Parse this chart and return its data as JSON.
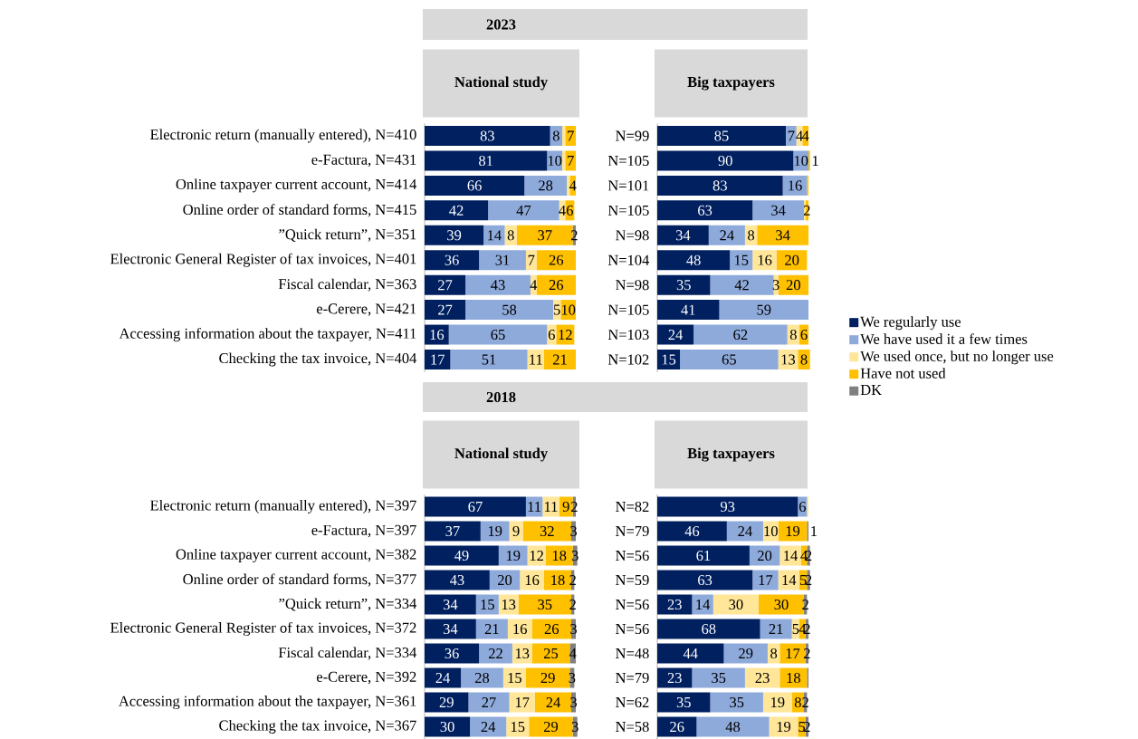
{
  "chart_data": [
    {
      "type": "bar",
      "orientation": "horizontal",
      "stacked": true,
      "title": "2023",
      "subtitle": "National study",
      "legend": "right",
      "tick_labels": "y",
      "xlim": [
        0,
        101
      ],
      "categories": [
        "Electronic return (manually entered), N=410",
        "e-Factura, N=431",
        "Online taxpayer current account, N=414",
        "Online order of standard forms, N=415",
        "”Quick return”, N=351",
        "Electronic General Register of tax invoices, N=401",
        "Fiscal calendar, N=363",
        "e-Cerere, N=421",
        "Accessing information about the taxpayer, N=411",
        "Checking the tax invoice, N=404"
      ],
      "series": [
        {
          "name": "We regularly use",
          "color": "#002060",
          "values": [
            83,
            81,
            66,
            42,
            39,
            36,
            27,
            27,
            16,
            17
          ],
          "value_labels": [
            "83",
            "81",
            "66",
            "42",
            "39",
            "36",
            "27",
            "27",
            "16",
            "17"
          ]
        },
        {
          "name": "We have used it a few times",
          "color": "#8eaadb",
          "values": [
            8,
            10,
            28,
            47,
            14,
            31,
            43,
            58,
            65,
            51
          ],
          "value_labels": [
            "8",
            "10",
            "28",
            "47",
            "14",
            "31",
            "43",
            "58",
            "65",
            "51"
          ]
        },
        {
          "name": "We used once, but  no longer use",
          "color": "#ffe699",
          "values": [
            2,
            2,
            2,
            4,
            8,
            7,
            4,
            5,
            6,
            11
          ],
          "value_labels": [
            null,
            null,
            null,
            "4",
            "8",
            "7",
            "4",
            "5",
            "6",
            "11"
          ]
        },
        {
          "name": "Have not used",
          "color": "#ffc000",
          "values": [
            7,
            7,
            4,
            6,
            37,
            26,
            26,
            10,
            12,
            21
          ],
          "value_labels": [
            "7",
            "7",
            "4",
            "6",
            "37",
            "26",
            "26",
            "10",
            "12",
            "21"
          ]
        },
        {
          "name": "DK",
          "color": "#808080",
          "values": [
            null,
            null,
            null,
            null,
            2,
            null,
            null,
            null,
            null,
            null
          ],
          "value_labels": [
            null,
            null,
            null,
            null,
            "2",
            null,
            null,
            null,
            null,
            null
          ]
        }
      ]
    },
    {
      "type": "bar",
      "orientation": "horizontal",
      "stacked": true,
      "subtitle": "Big taxpayers",
      "tick_labels": "y",
      "xlim": [
        0,
        101
      ],
      "categories": [
        "N=99",
        "N=105",
        "N=101",
        "N=105",
        "N=98",
        "N=104",
        "N=98",
        "N=105",
        "N=103",
        "N=102"
      ],
      "series": [
        {
          "color": "#002060",
          "values": [
            85,
            90,
            83,
            63,
            34,
            48,
            35,
            41,
            24,
            15
          ],
          "value_labels": [
            "85",
            "90",
            "83",
            "63",
            "34",
            "48",
            "35",
            "41",
            "24",
            "15"
          ]
        },
        {
          "color": "#8eaadb",
          "values": [
            7,
            10,
            16,
            34,
            24,
            15,
            42,
            59,
            62,
            65
          ],
          "value_labels": [
            "7",
            "10",
            "16",
            "34",
            "24",
            "15",
            "42",
            "59",
            "62",
            "65"
          ]
        },
        {
          "color": "#ffe699",
          "values": [
            4,
            null,
            null,
            1,
            8,
            16,
            3,
            null,
            8,
            13
          ],
          "value_labels": [
            "4",
            null,
            null,
            null,
            "8",
            "16",
            "3",
            null,
            "8",
            "13"
          ]
        },
        {
          "color": "#ffc000",
          "values": [
            4,
            1,
            1,
            2,
            34,
            20,
            20,
            null,
            6,
            8
          ],
          "value_labels": [
            "4",
            "1",
            null,
            "2",
            "34",
            "20",
            "20",
            null,
            "6",
            "8"
          ]
        },
        {
          "color": "#808080",
          "values": [
            null,
            null,
            null,
            null,
            null,
            null,
            null,
            null,
            null,
            null
          ],
          "value_labels": [
            null,
            null,
            null,
            null,
            null,
            null,
            null,
            null,
            null,
            null
          ]
        }
      ]
    },
    {
      "type": "bar",
      "orientation": "horizontal",
      "stacked": true,
      "title": "2018",
      "subtitle": "National study",
      "tick_labels": "y",
      "xlim": [
        0,
        101
      ],
      "categories": [
        "Electronic return (manually entered), N=397",
        "e-Factura, N=397",
        "Online taxpayer current account, N=382",
        "Online order of standard forms, N=377",
        "”Quick return”, N=334",
        "Electronic General Register of tax invoices, N=372",
        "Fiscal calendar, N=334",
        "e-Cerere, N=392",
        "Accessing information about the taxpayer, N=361",
        "Checking the tax invoice, N=367"
      ],
      "series": [
        {
          "color": "#002060",
          "values": [
            67,
            37,
            49,
            43,
            34,
            34,
            36,
            24,
            29,
            30
          ],
          "value_labels": [
            "67",
            "37",
            "49",
            "43",
            "34",
            "34",
            "36",
            "24",
            "29",
            "30"
          ]
        },
        {
          "color": "#8eaadb",
          "values": [
            11,
            19,
            19,
            20,
            15,
            21,
            22,
            28,
            27,
            24
          ],
          "value_labels": [
            "11",
            "19",
            "19",
            "20",
            "15",
            "21",
            "22",
            "28",
            "27",
            "24"
          ]
        },
        {
          "color": "#ffe699",
          "values": [
            11,
            9,
            12,
            16,
            13,
            16,
            13,
            15,
            17,
            15
          ],
          "value_labels": [
            "11",
            "9",
            "12",
            "16",
            "13",
            "16",
            "13",
            "15",
            "17",
            "15"
          ]
        },
        {
          "color": "#ffc000",
          "values": [
            9,
            32,
            18,
            18,
            35,
            26,
            25,
            29,
            24,
            29
          ],
          "value_labels": [
            "9",
            "32",
            "18",
            "18",
            "35",
            "26",
            "25",
            "29",
            "24",
            "29"
          ]
        },
        {
          "color": "#808080",
          "values": [
            2,
            3,
            3,
            2,
            2,
            3,
            4,
            3,
            3,
            3
          ],
          "value_labels": [
            "2",
            "3",
            "3",
            "2",
            "2",
            "3",
            "4",
            "3",
            "3",
            "3"
          ]
        }
      ]
    },
    {
      "type": "bar",
      "orientation": "horizontal",
      "stacked": true,
      "subtitle": "Big taxpayers",
      "tick_labels": "y",
      "xlim": [
        0,
        101
      ],
      "categories": [
        "N=82",
        "N=79",
        "N=56",
        "N=59",
        "N=56",
        "N=56",
        "N=48",
        "N=79",
        "N=62",
        "N=58"
      ],
      "series": [
        {
          "color": "#002060",
          "values": [
            93,
            46,
            61,
            63,
            23,
            68,
            44,
            23,
            35,
            26
          ],
          "value_labels": [
            "93",
            "46",
            "61",
            "63",
            "23",
            "68",
            "44",
            "23",
            "35",
            "26"
          ]
        },
        {
          "color": "#8eaadb",
          "values": [
            6,
            24,
            20,
            17,
            14,
            21,
            29,
            35,
            35,
            48
          ],
          "value_labels": [
            "6",
            "24",
            "20",
            "17",
            "14",
            "21",
            "29",
            "35",
            "35",
            "48"
          ]
        },
        {
          "color": "#ffe699",
          "values": [
            1,
            10,
            14,
            14,
            30,
            5,
            8,
            23,
            19,
            19
          ],
          "value_labels": [
            null,
            "10",
            "14",
            "14",
            "30",
            "5",
            "8",
            "23",
            "19",
            "19"
          ]
        },
        {
          "color": "#ffc000",
          "values": [
            null,
            19,
            4,
            5,
            30,
            4,
            17,
            18,
            8,
            5
          ],
          "value_labels": [
            null,
            "19",
            "4",
            "5",
            "30",
            "4",
            "17",
            "18",
            "8",
            "5"
          ]
        },
        {
          "color": "#808080",
          "values": [
            null,
            1,
            2,
            2,
            2,
            2,
            2,
            1,
            2,
            2
          ],
          "value_labels": [
            null,
            "1",
            "2",
            "2",
            "2",
            "2",
            "2",
            null,
            "2",
            "2"
          ]
        }
      ]
    }
  ]
}
